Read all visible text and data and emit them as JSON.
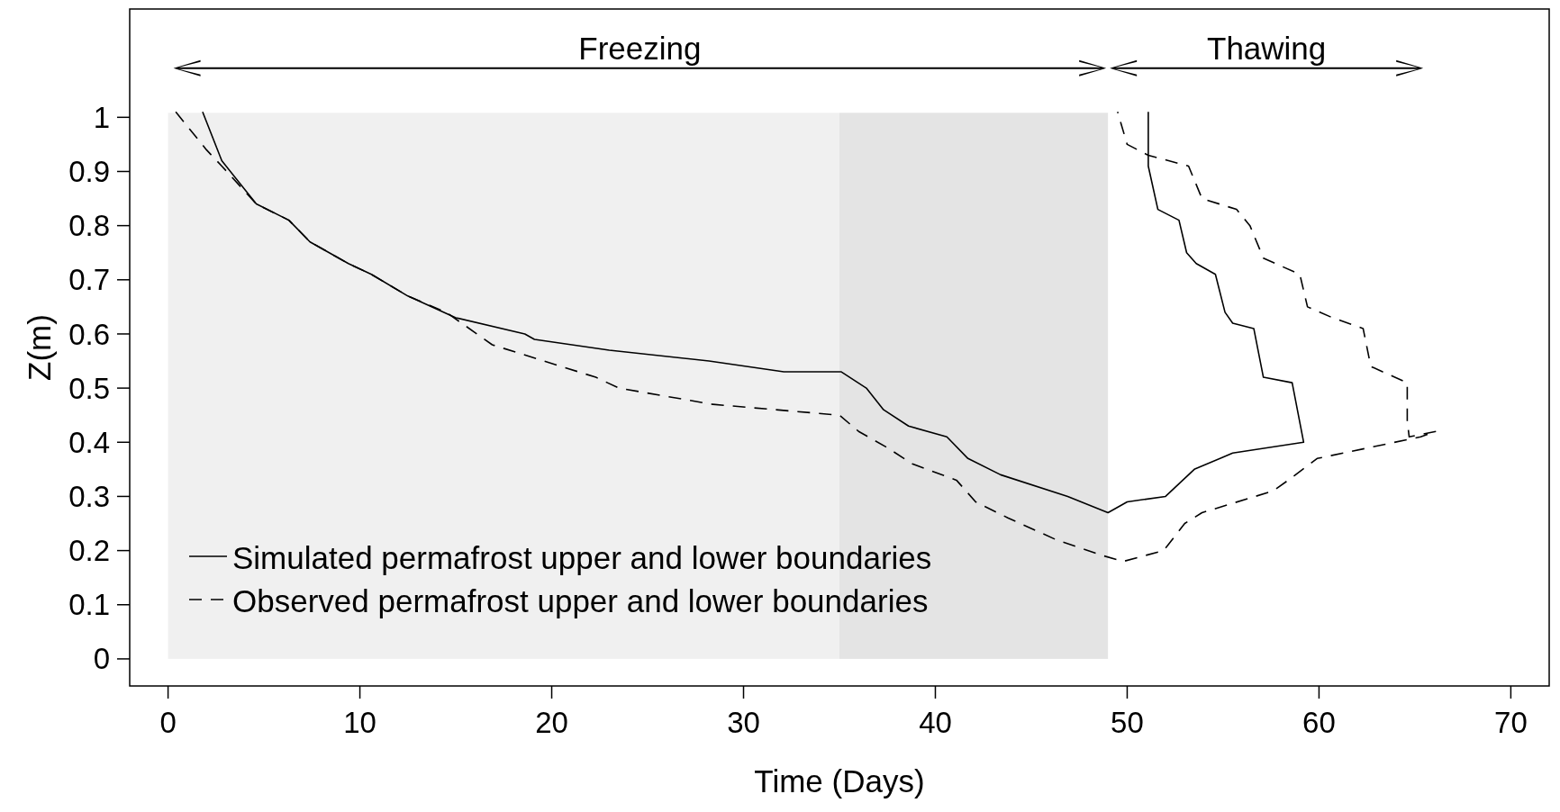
{
  "chart_data": {
    "type": "line",
    "xlabel": "Time (Days)",
    "ylabel": "Z(m)",
    "xlim": [
      -2,
      72
    ],
    "ylim": [
      -0.05,
      1.2
    ],
    "xticks": [
      0,
      10,
      20,
      30,
      40,
      50,
      60,
      70
    ],
    "yticks": [
      0,
      0.1,
      0.2,
      0.3,
      0.4,
      0.5,
      0.6,
      0.7,
      0.8,
      0.9,
      1
    ],
    "grid": false,
    "legend": "bottom left",
    "marker": "none",
    "bands": [
      {
        "axis": "x",
        "from": 0,
        "to": 35,
        "color": "#f0f0f0"
      },
      {
        "axis": "x",
        "from": 35,
        "to": 49,
        "color": "#e4e4e4"
      }
    ],
    "annotations": [
      "Freezing",
      "Thawing"
    ],
    "series": [
      {
        "name": "Simulated permafrost upper and lower boundaries",
        "color": "#000000",
        "line_style": "solid",
        "x": [
          1.8,
          2.8,
          4.6,
          6.3,
          7.4,
          9.4,
          10.6,
          12.5,
          15.0,
          18.6,
          19.1,
          23.0,
          28.2,
          32.1,
          35.0,
          35.1,
          36.4,
          37.3,
          38.6,
          40.6,
          41.7,
          43.4,
          46.9,
          49.0,
          50.0,
          52.0,
          53.5,
          55.5,
          59.2,
          58.6,
          57.1,
          56.6,
          55.5,
          55.1,
          54.6,
          53.6,
          53.1,
          52.7,
          51.6,
          51.1,
          51.1
        ],
        "values": [
          1.01,
          0.92,
          0.84,
          0.81,
          0.77,
          0.73,
          0.71,
          0.67,
          0.63,
          0.6,
          0.59,
          0.57,
          0.55,
          0.53,
          0.53,
          0.53,
          0.5,
          0.46,
          0.43,
          0.41,
          0.37,
          0.34,
          0.3,
          0.27,
          0.29,
          0.3,
          0.35,
          0.38,
          0.4,
          0.51,
          0.52,
          0.61,
          0.62,
          0.64,
          0.71,
          0.73,
          0.75,
          0.81,
          0.83,
          0.91,
          1.01
        ]
      },
      {
        "name": "Observed permafrost upper and lower boundaries",
        "color": "#000000",
        "line_style": "dashed",
        "x": [
          0.4,
          2.0,
          2.8,
          4.6,
          6.3,
          7.4,
          9.4,
          10.6,
          12.5,
          14.5,
          16.9,
          22.3,
          23.5,
          28.4,
          35.0,
          36.0,
          37.5,
          38.8,
          41.1,
          42.1,
          43.8,
          46.3,
          48.8,
          49.8,
          51.9,
          53.0,
          53.9,
          57.6,
          58.4,
          59.9,
          65.3,
          66.1,
          64.7,
          64.6,
          64.6,
          62.7,
          62.3,
          60.7,
          59.4,
          59.0,
          57.1,
          56.4,
          55.7,
          53.9,
          53.2,
          51.1,
          50.0,
          49.5
        ],
        "values": [
          1.01,
          0.94,
          0.91,
          0.84,
          0.81,
          0.77,
          0.73,
          0.71,
          0.67,
          0.64,
          0.58,
          0.52,
          0.5,
          0.47,
          0.45,
          0.42,
          0.39,
          0.36,
          0.33,
          0.29,
          0.26,
          0.22,
          0.19,
          0.18,
          0.2,
          0.25,
          0.27,
          0.31,
          0.33,
          0.37,
          0.41,
          0.42,
          0.41,
          0.44,
          0.51,
          0.54,
          0.61,
          0.63,
          0.65,
          0.71,
          0.74,
          0.8,
          0.83,
          0.85,
          0.91,
          0.93,
          0.95,
          1.01
        ]
      }
    ]
  }
}
